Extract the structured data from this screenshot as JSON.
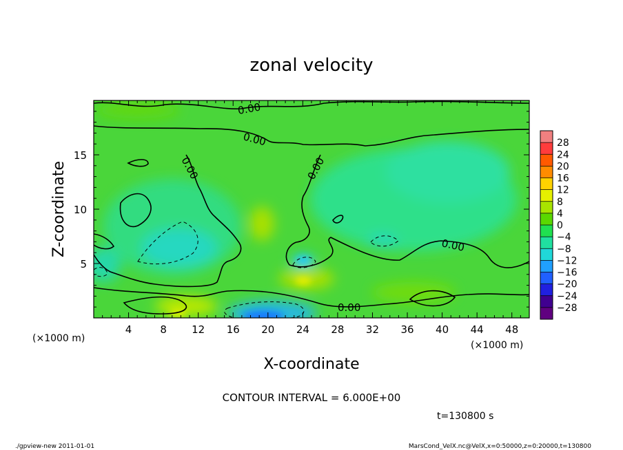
{
  "chart_data": {
    "type": "heatmap",
    "title": "zonal velocity",
    "xlabel": "X-coordinate",
    "ylabel": "Z-coordinate",
    "x_unit": "(×1000 m)",
    "y_unit": "(×1000 m)",
    "xlim": [
      0,
      50
    ],
    "ylim": [
      0,
      20
    ],
    "x_ticks": [
      "4",
      "8",
      "12",
      "16",
      "20",
      "24",
      "28",
      "32",
      "36",
      "40",
      "44",
      "48"
    ],
    "y_ticks": [
      "5",
      "10",
      "15"
    ],
    "colorbar": {
      "labels": [
        "28",
        "24",
        "20",
        "16",
        "12",
        "8",
        "4",
        "0",
        "−4",
        "−8",
        "−12",
        "−16",
        "−20",
        "−24",
        "−28"
      ],
      "colors": [
        "#f08080",
        "#ff3c3c",
        "#ff5a00",
        "#ff8c00",
        "#ffd200",
        "#e6f000",
        "#a8e400",
        "#5ad800",
        "#20e050",
        "#20e0a0",
        "#20d8d8",
        "#20a0ff",
        "#2060ff",
        "#2020e0",
        "#400090",
        "#600080"
      ]
    },
    "contour_labels": [
      "0.00",
      "0.00",
      "0.00",
      "0.00",
      "0.00",
      "0.00"
    ],
    "contour_interval": "CONTOUR INTERVAL = 6.000E+00",
    "time": "t=130800 s",
    "grid": false
  },
  "footer": {
    "left": "./gpview-new   2011-01-01",
    "right": "MarsCond_VelX.nc@VelX,x=0:50000,z=0:20000,t=130800"
  }
}
